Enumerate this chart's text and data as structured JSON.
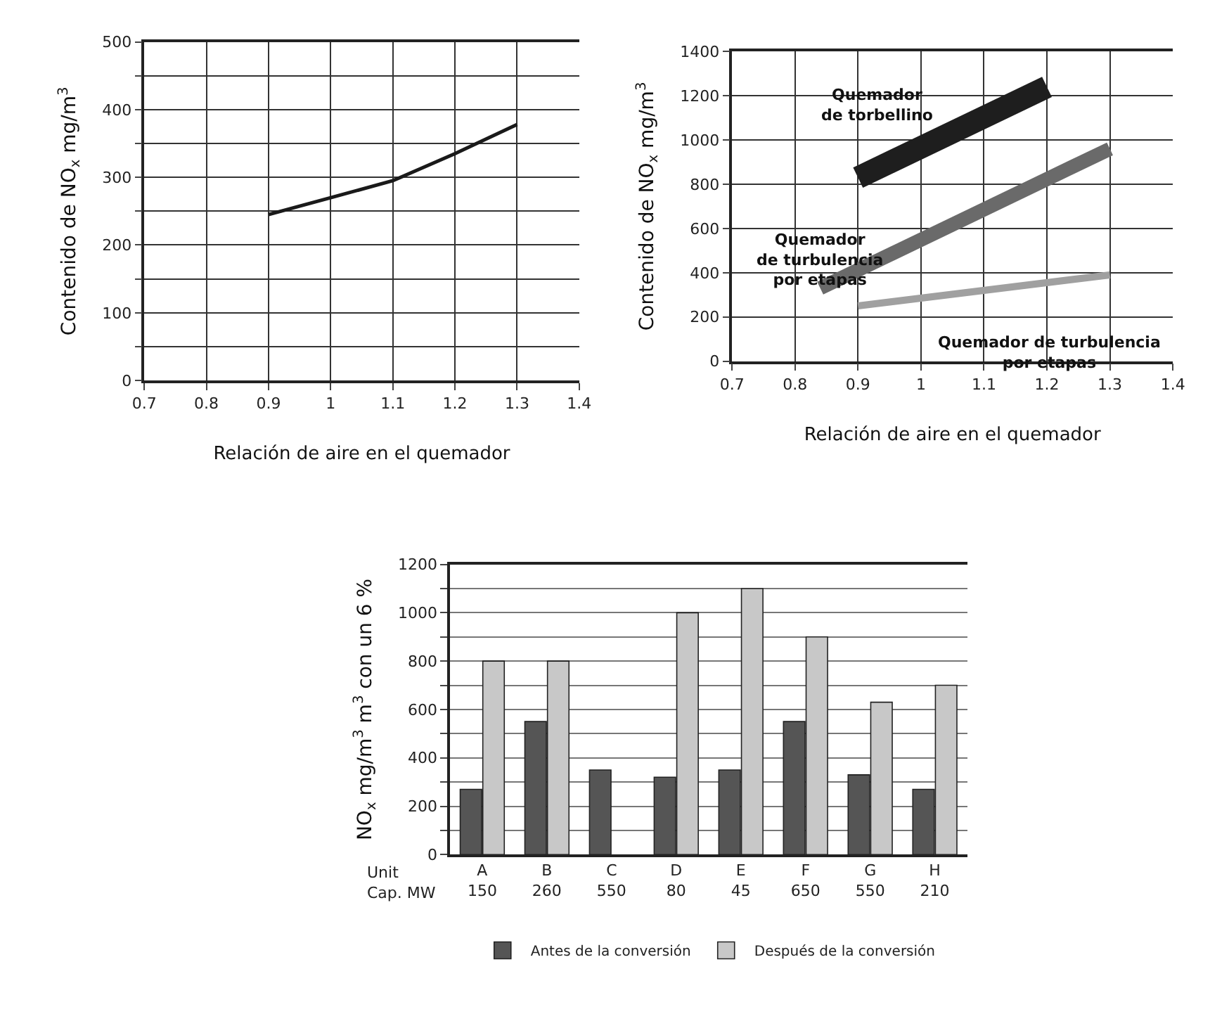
{
  "chart_data": [
    {
      "type": "line",
      "ylabel": "Contenido de NO$_{x}$ mg/m$^{3}$",
      "xlabel": "Relación de aire en el quemador",
      "x": [
        0.9,
        1.0,
        1.1,
        1.2,
        1.3
      ],
      "series": [
        {
          "color": "#1a1a1a",
          "values": [
            245,
            270,
            295,
            335,
            378
          ]
        }
      ],
      "xlim": [
        0.7,
        1.4
      ],
      "xticks": [
        0.7,
        0.8,
        0.9,
        1,
        1.1,
        1.2,
        1.3,
        1.4
      ],
      "ylim": [
        0,
        500
      ],
      "yticks": [
        0,
        {
          "value": 50,
          "label": null
        },
        100,
        {
          "value": 150,
          "label": null
        },
        200,
        {
          "value": 250,
          "label": null
        },
        300,
        {
          "value": 350,
          "label": null
        },
        400,
        {
          "value": 450,
          "label": null
        },
        500
      ],
      "grid": true,
      "legend": false,
      "marker": "none",
      "line_style": "solid"
    },
    {
      "type": "line",
      "ylabel": "Contenido de NO$_{x}$ mg/m$^{3}$",
      "xlabel": "Relación de aire en el quemador",
      "series": [
        {
          "color": "#1e1e1e",
          "x": [
            0.9,
            1.2
          ],
          "values": [
            830,
            1240
          ]
        },
        {
          "color": "#6a6a6a",
          "x": [
            0.84,
            1.3
          ],
          "values": [
            330,
            960
          ]
        },
        {
          "color": "#a0a0a0",
          "x": [
            0.9,
            1.3
          ],
          "values": [
            250,
            390
          ]
        }
      ],
      "annotations": [
        "Quemador\nde torbellino",
        "Quemador\nde turbulencia\npor etapas",
        "Quemador de turbulencia\npor etapas"
      ],
      "xlim": [
        0.7,
        1.4
      ],
      "xticks": [
        0.7,
        0.8,
        0.9,
        1,
        1.1,
        1.2,
        1.3,
        1.4
      ],
      "ylim": [
        0,
        1400
      ],
      "yticks": [
        0,
        200,
        400,
        600,
        800,
        1000,
        1200,
        1400
      ],
      "grid": true,
      "legend": false
    },
    {
      "type": "bar",
      "ylabel": "NO$_{x}$ mg/m$^{3}$ m$^{3}$ con un 6 %",
      "categories": [
        "A\n150",
        "B\n260",
        "C\n550",
        "D\n80",
        "E\n45",
        "F\n650",
        "G\n550",
        "H\n210"
      ],
      "series": [
        {
          "name": "Antes de la conversión",
          "color": "#555555",
          "values": [
            270,
            550,
            350,
            320,
            350,
            550,
            330,
            270
          ]
        },
        {
          "name": "Después de la conversión",
          "color": "#c8c8c8",
          "values": [
            800,
            800,
            null,
            1000,
            1100,
            900,
            630,
            700
          ]
        }
      ],
      "annotations": [
        "Unit\nCap. MW"
      ],
      "ylim": [
        0,
        1200
      ],
      "yticks": [
        0,
        {
          "value": 100,
          "label": null
        },
        200,
        {
          "value": 300,
          "label": null
        },
        400,
        {
          "value": 500,
          "label": null
        },
        600,
        {
          "value": 700,
          "label": null
        },
        800,
        {
          "value": 900,
          "label": null
        },
        1000,
        {
          "value": 1100,
          "label": null
        },
        1200
      ],
      "grid": "y",
      "legend": "bottom"
    }
  ]
}
